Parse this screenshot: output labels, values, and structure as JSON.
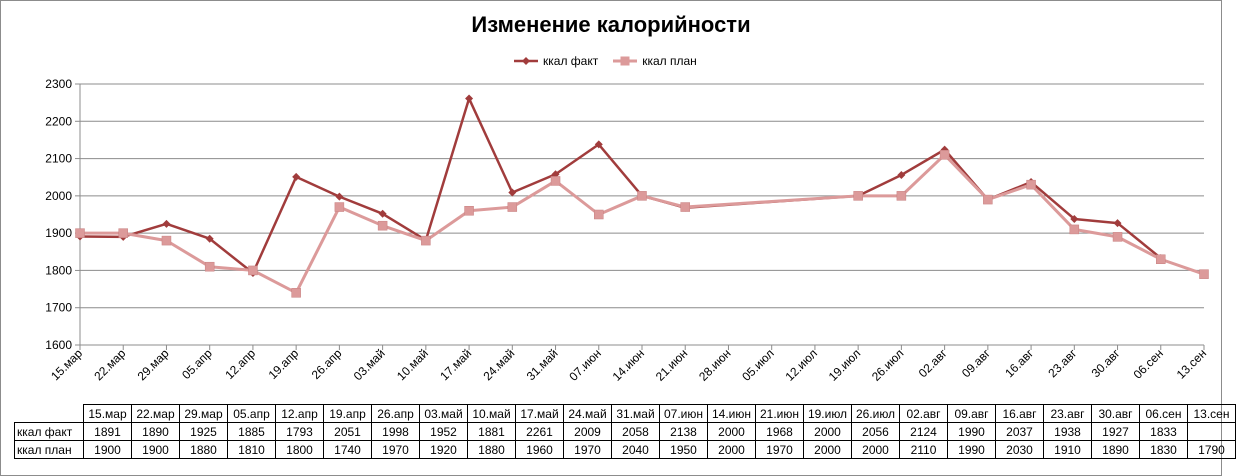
{
  "chart_data": {
    "type": "line",
    "title": "Изменение калорийности",
    "categories": [
      "15.мар",
      "22.мар",
      "29.мар",
      "05.апр",
      "12.апр",
      "19.апр",
      "26.апр",
      "03.май",
      "10.май",
      "17.май",
      "24.май",
      "31.май",
      "07.июн",
      "14.июн",
      "21.июн",
      "28.июн",
      "05.июл",
      "12.июл",
      "19.июл",
      "26.июл",
      "02.авг",
      "09.авг",
      "16.авг",
      "23.авг",
      "30.авг",
      "06.сен",
      "13.сен"
    ],
    "axis_categories": [
      "15.мар",
      "22.мар",
      "29.мар",
      "05.апр",
      "12.апр",
      "19.апр",
      "26.апр",
      "03.май",
      "10.май",
      "17.май",
      "24.май",
      "31.май",
      "07.июн",
      "14.июн",
      "21.июн",
      "28.июн",
      "05.июл",
      "12.июл",
      "19.июл",
      "26.июл",
      "02.авг",
      "09.авг",
      "16.авг",
      "23.авг",
      "30.авг",
      "06.сен",
      "13.сен"
    ],
    "table_categories": [
      "15.мар",
      "22.мар",
      "29.мар",
      "05.апр",
      "12.апр",
      "19.апр",
      "26.апр",
      "03.май",
      "10.май",
      "17.май",
      "24.май",
      "31.май",
      "07.июн",
      "14.июн",
      "21.июн",
      "19.июл",
      "26.июл",
      "02.авг",
      "09.авг",
      "16.авг",
      "23.авг",
      "30.авг",
      "06.сен",
      "13.сен"
    ],
    "series": [
      {
        "name": "ккал факт",
        "color": "#a13c3c",
        "marker": "diamond",
        "points": [
          [
            "15.мар",
            1891
          ],
          [
            "22.мар",
            1890
          ],
          [
            "29.мар",
            1925
          ],
          [
            "05.апр",
            1885
          ],
          [
            "12.апр",
            1793
          ],
          [
            "19.апр",
            2051
          ],
          [
            "26.апр",
            1998
          ],
          [
            "03.май",
            1952
          ],
          [
            "10.май",
            1881
          ],
          [
            "17.май",
            2261
          ],
          [
            "24.май",
            2009
          ],
          [
            "31.май",
            2058
          ],
          [
            "07.июн",
            2138
          ],
          [
            "14.июн",
            2000
          ],
          [
            "21.июн",
            1968
          ],
          [
            "19.июл",
            2000
          ],
          [
            "26.июл",
            2056
          ],
          [
            "02.авг",
            2124
          ],
          [
            "09.авг",
            1990
          ],
          [
            "16.авг",
            2037
          ],
          [
            "23.авг",
            1938
          ],
          [
            "30.авг",
            1927
          ],
          [
            "06.сен",
            1833
          ]
        ],
        "table_values": [
          "1891",
          "1890",
          "1925",
          "1885",
          "1793",
          "2051",
          "1998",
          "1952",
          "1881",
          "2261",
          "2009",
          "2058",
          "2138",
          "2000",
          "1968",
          "2000",
          "2056",
          "2124",
          "1990",
          "2037",
          "1938",
          "1927",
          "1833",
          ""
        ]
      },
      {
        "name": "ккал план",
        "color": "#dc9a9a",
        "marker": "square",
        "points": [
          [
            "15.мар",
            1900
          ],
          [
            "22.мар",
            1900
          ],
          [
            "29.мар",
            1880
          ],
          [
            "05.апр",
            1810
          ],
          [
            "12.апр",
            1800
          ],
          [
            "19.апр",
            1740
          ],
          [
            "26.апр",
            1970
          ],
          [
            "03.май",
            1920
          ],
          [
            "10.май",
            1880
          ],
          [
            "17.май",
            1960
          ],
          [
            "24.май",
            1970
          ],
          [
            "31.май",
            2040
          ],
          [
            "07.июн",
            1950
          ],
          [
            "14.июн",
            2000
          ],
          [
            "21.июн",
            1970
          ],
          [
            "19.июл",
            2000
          ],
          [
            "26.июл",
            2000
          ],
          [
            "02.авг",
            2110
          ],
          [
            "09.авг",
            1990
          ],
          [
            "16.авг",
            2030
          ],
          [
            "23.авг",
            1910
          ],
          [
            "30.авг",
            1890
          ],
          [
            "06.сен",
            1830
          ],
          [
            "13.сен",
            1790
          ]
        ],
        "table_values": [
          "1900",
          "1900",
          "1880",
          "1810",
          "1800",
          "1740",
          "1970",
          "1920",
          "1880",
          "1960",
          "1970",
          "2040",
          "1950",
          "2000",
          "1970",
          "2000",
          "2000",
          "2110",
          "1990",
          "2030",
          "1910",
          "1890",
          "1830",
          "1790"
        ]
      }
    ],
    "ylim": [
      1600,
      2300
    ],
    "yticks": [
      1600,
      1700,
      1800,
      1900,
      2000,
      2100,
      2200,
      2300
    ],
    "grid": true,
    "legend_position": "top"
  }
}
